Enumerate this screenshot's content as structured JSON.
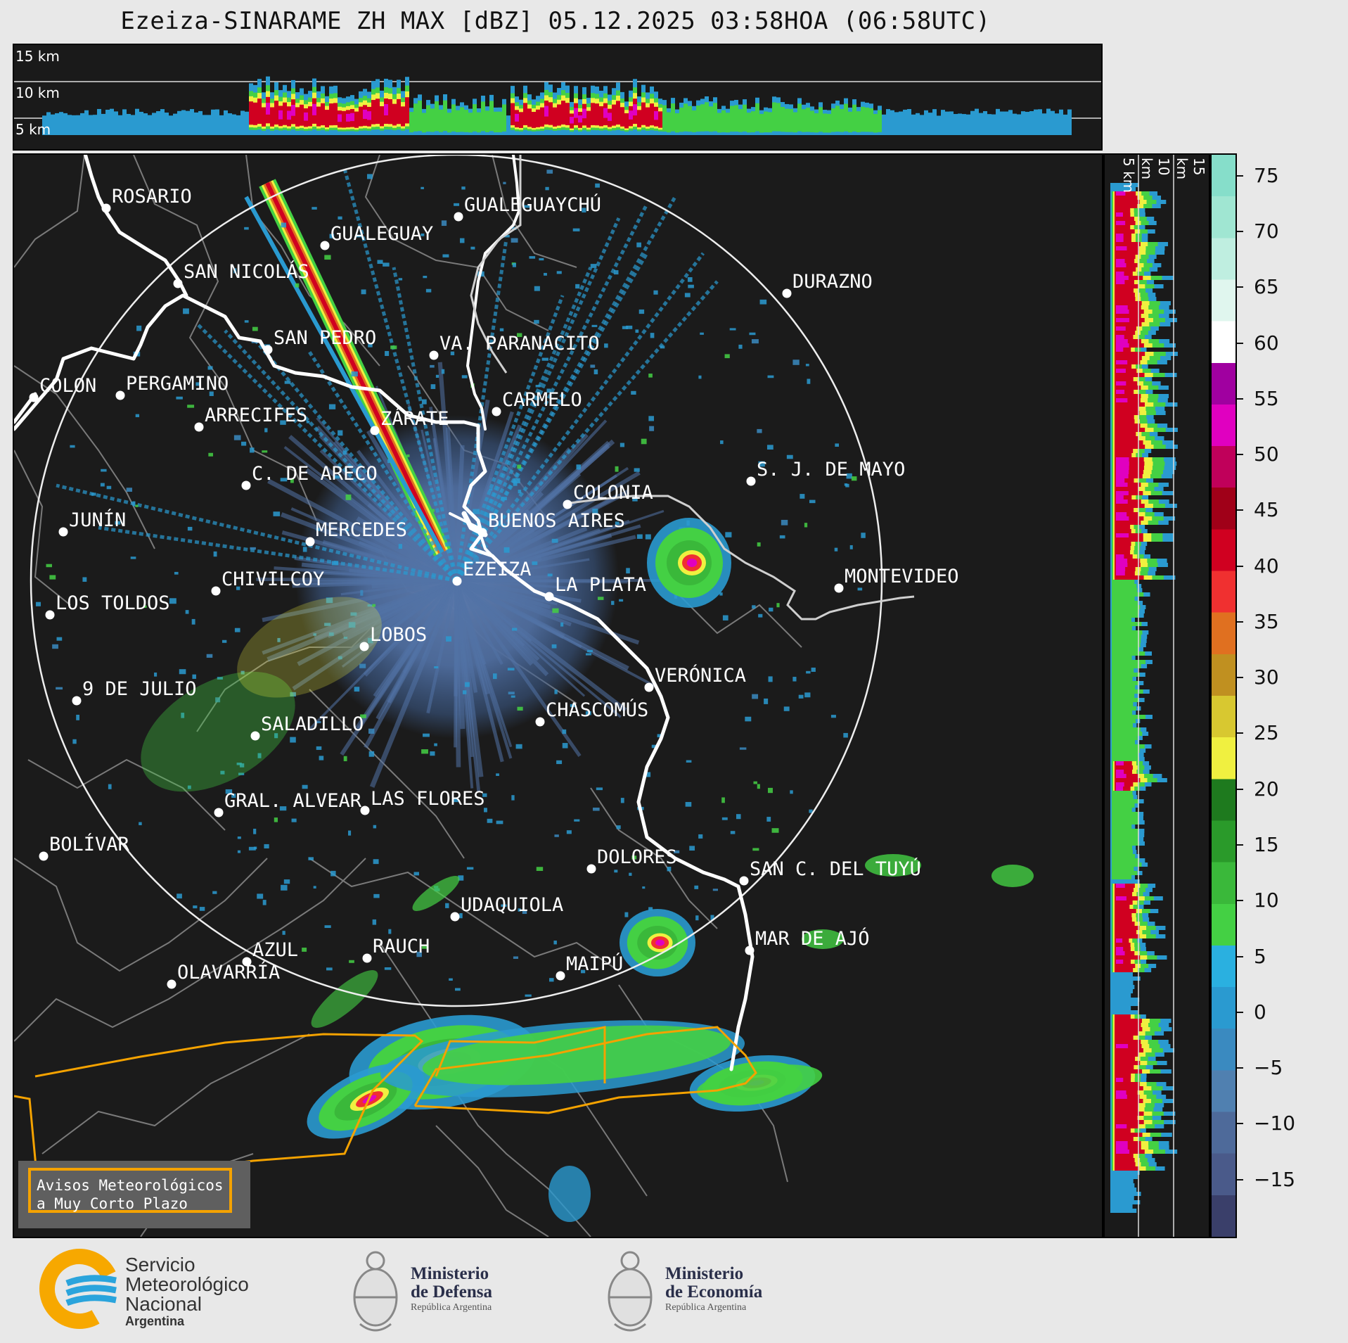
{
  "title": "Ezeiza-SINARAME ZH MAX [dBZ] 05.12.2025 03:58HOA (06:58UTC)",
  "top_panel": {
    "levels": [
      "15 km",
      "10 km",
      "5 km"
    ]
  },
  "side_panel": {
    "levels": [
      "5 km",
      "10 km",
      "15 km"
    ]
  },
  "colorbar": {
    "ticks": [
      "75",
      "70",
      "65",
      "60",
      "55",
      "50",
      "45",
      "40",
      "35",
      "30",
      "25",
      "20",
      "15",
      "10",
      "5",
      "0",
      "−5",
      "−10",
      "−15"
    ],
    "range": [
      -20,
      77
    ],
    "colors": [
      "#3a3f6a",
      "#4a5a8a",
      "#4e6a9a",
      "#5080b0",
      "#3a8ac0",
      "#2a9ad0",
      "#2ab0e0",
      "#44d044",
      "#3ab83a",
      "#2a9a2a",
      "#1e7a1e",
      "#f0f040",
      "#d8c830",
      "#c09020",
      "#e07020",
      "#f03030",
      "#d00020",
      "#a00018",
      "#c0005a",
      "#e000c0",
      "#a000a0",
      "#ffffff",
      "#e0f6ee",
      "#bfeee0",
      "#a0e6d2",
      "#86deca"
    ]
  },
  "cities": [
    {
      "name": "ROSARIO"
    },
    {
      "name": "GUALEGUAYCHÚ"
    },
    {
      "name": "GUALEGUAY"
    },
    {
      "name": "SAN NICOLÁS"
    },
    {
      "name": "DURAZNO"
    },
    {
      "name": "SAN PEDRO"
    },
    {
      "name": "VA. PARANACITO"
    },
    {
      "name": "COLON"
    },
    {
      "name": "PERGAMINO"
    },
    {
      "name": "CARMELO"
    },
    {
      "name": "ARRECIFES"
    },
    {
      "name": "ZÁRATE"
    },
    {
      "name": "C. DE ARECO"
    },
    {
      "name": "S. J. DE MAYO"
    },
    {
      "name": "COLONIA"
    },
    {
      "name": "JUNÍN"
    },
    {
      "name": "BUENOS AIRES"
    },
    {
      "name": "MERCEDES"
    },
    {
      "name": "EZEIZA"
    },
    {
      "name": "CHIVILCOY"
    },
    {
      "name": "MONTEVIDEO"
    },
    {
      "name": "LA PLATA"
    },
    {
      "name": "LOS TOLDOS"
    },
    {
      "name": "LOBOS"
    },
    {
      "name": "VERÓNICA"
    },
    {
      "name": "9 DE JULIO"
    },
    {
      "name": "CHASCOMÚS"
    },
    {
      "name": "SALADILLO"
    },
    {
      "name": "GRAL. ALVEAR"
    },
    {
      "name": "LAS FLORES"
    },
    {
      "name": "BOLÍVAR"
    },
    {
      "name": "DOLORES"
    },
    {
      "name": "SAN C. DEL TUYÚ"
    },
    {
      "name": "UDAQUIOLA"
    },
    {
      "name": "AZUL"
    },
    {
      "name": "RAUCH"
    },
    {
      "name": "MAR DE AJÓ"
    },
    {
      "name": "OLAVARRÍA"
    },
    {
      "name": "MAIPÚ"
    }
  ],
  "warning_box": {
    "line1": "Avisos Meteorológicos",
    "line2": "a Muy Corto Plazo"
  },
  "logos": {
    "smn": {
      "line1": "Servicio",
      "line2": "Meteorológico",
      "line3": "Nacional",
      "line4": "Argentina"
    },
    "defensa": {
      "line1": "Ministerio",
      "line2": "de Defensa",
      "line3": "República Argentina"
    },
    "economia": {
      "line1": "Ministerio",
      "line2": "de Economía",
      "line3": "República Argentina"
    }
  }
}
